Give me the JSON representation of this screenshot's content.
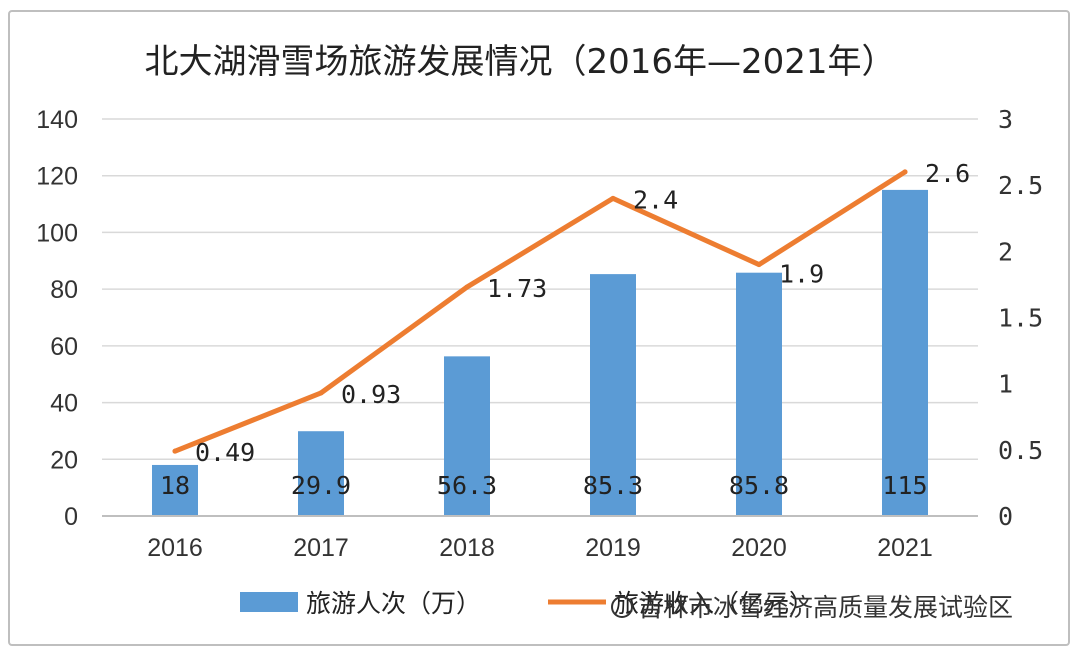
{
  "chart_data": {
    "type": "bar",
    "title": "北大湖滑雪场旅游发展情况（2016年—2021年）",
    "categories": [
      "2016",
      "2017",
      "2018",
      "2019",
      "2020",
      "2021"
    ],
    "series": [
      {
        "name": "旅游人次（万）",
        "type": "bar",
        "axis": "left",
        "color": "#5b9bd5",
        "values": [
          18,
          29.9,
          56.3,
          85.3,
          85.8,
          115
        ],
        "labels": [
          "18",
          "29.9",
          "56.3",
          "85.3",
          "85.8",
          "115"
        ]
      },
      {
        "name": "旅游收入（亿元）",
        "type": "line",
        "axis": "right",
        "color": "#ed7d31",
        "values": [
          0.49,
          0.93,
          1.73,
          2.4,
          1.9,
          2.6
        ],
        "labels": [
          "0.49",
          "0.93",
          "1.73",
          "2.4",
          "1.9",
          "2.6"
        ]
      }
    ],
    "y_left": {
      "ylim": [
        0,
        140
      ],
      "ticks": [
        "0",
        "20",
        "40",
        "60",
        "80",
        "100",
        "120",
        "140"
      ]
    },
    "y_right": {
      "ylim": [
        0,
        3
      ],
      "ticks": [
        "0",
        "0.5",
        "1",
        "1.5",
        "2",
        "2.5",
        "3"
      ]
    },
    "grid": true,
    "legend_position": "bottom"
  },
  "watermark": "吉林市冰雪经济高质量发展试验区"
}
